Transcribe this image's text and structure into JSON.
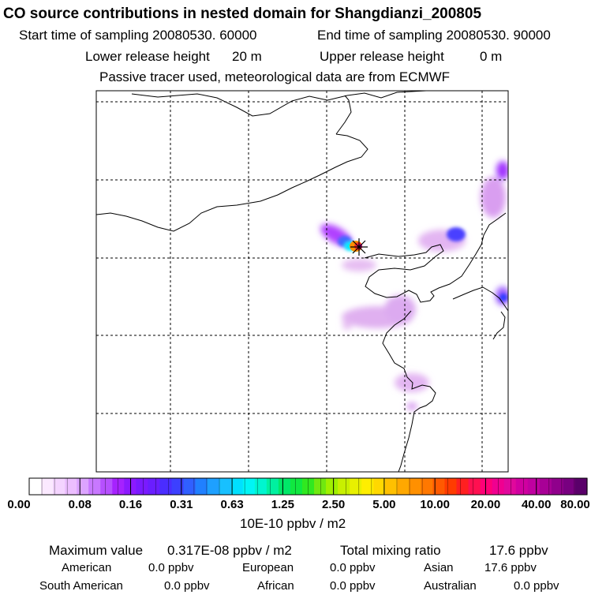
{
  "title": "CO  source contributions in nested domain for Shangdianzi_200805",
  "header": {
    "start_label": "Start time of sampling 20080530. 60000",
    "end_label": "End time of sampling 20080530. 90000",
    "lower_label": "Lower release height",
    "lower_value": "20 m",
    "upper_label": "Upper release height",
    "upper_value": "0 m",
    "note": "Passive tracer used, meteorological data are from ECMWF"
  },
  "colors": {
    "palette": [
      "#ffffff",
      "#fbe9ff",
      "#f4d4ff",
      "#ecbeff",
      "#dca4ff",
      "#c878ff",
      "#b650ff",
      "#a622ff",
      "#8c1aff",
      "#7a1aff",
      "#6a1eff",
      "#4a2dff",
      "#3c40ff",
      "#3060ff",
      "#2080ff",
      "#1ea0ff",
      "#18c0ff",
      "#00e0ff",
      "#00f5f5",
      "#00f5d0",
      "#00f0a0",
      "#00e868",
      "#10e840",
      "#30e820",
      "#70e810",
      "#a0f000",
      "#c8f000",
      "#e8f000",
      "#ffee00",
      "#ffd800",
      "#ffc000",
      "#ffa800",
      "#ff9000",
      "#ff7800",
      "#ff5a00",
      "#ff3c00",
      "#ff2020",
      "#ff1050",
      "#ff0078",
      "#f00090",
      "#e0089c",
      "#d000a0",
      "#c000a0",
      "#a80096",
      "#90008c",
      "#780080",
      "#5a006a"
    ],
    "coast": "#000000",
    "grid": "#000000"
  },
  "colorbar": {
    "ticks": [
      "0.00",
      "0.08",
      "0.16",
      "0.31",
      "0.63",
      "1.25",
      "2.50",
      "5.00",
      "10.00",
      "20.00",
      "40.00",
      "80.00"
    ],
    "unit": "10E-10 ppbv / m2"
  },
  "stats": {
    "max_label": "Maximum value",
    "max_value": "0.317E-08 ppbv / m2",
    "total_label": "Total mixing ratio",
    "total_value": "17.6 ppbv"
  },
  "regions": [
    {
      "name": "American",
      "value": "0.0 ppbv"
    },
    {
      "name": "European",
      "value": "0.0 ppbv"
    },
    {
      "name": "Asian",
      "value": "17.6 ppbv"
    },
    {
      "name": "South American",
      "value": "0.0 ppbv"
    },
    {
      "name": "African",
      "value": "0.0 ppbv"
    },
    {
      "name": "Australian",
      "value": "0.0 ppbv"
    }
  ]
}
